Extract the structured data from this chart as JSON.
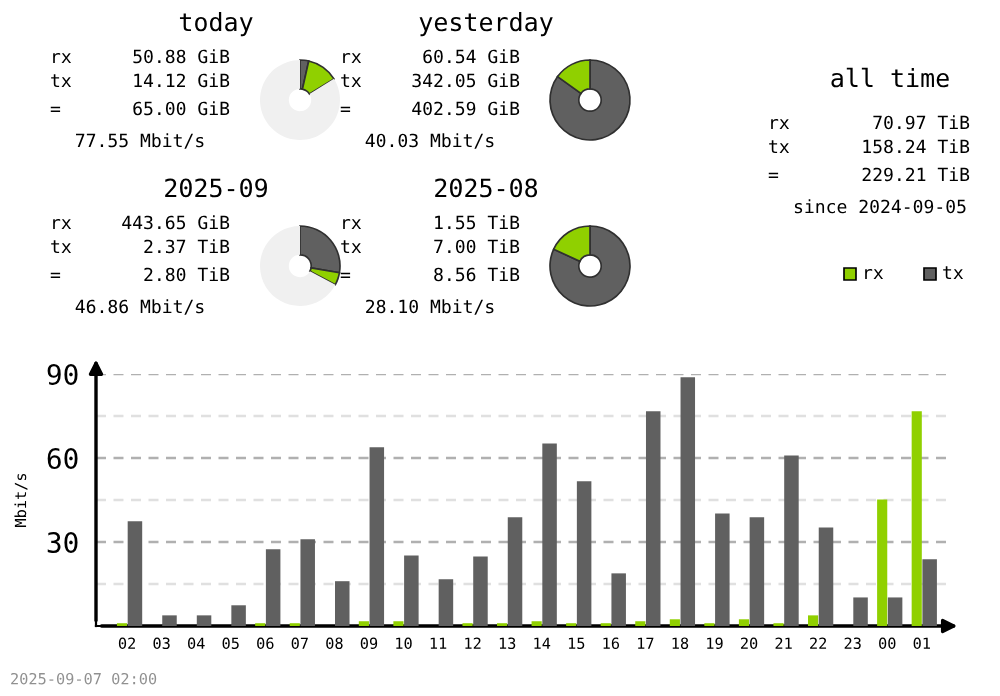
{
  "chart_data": [
    {
      "type": "donut",
      "title": "today",
      "categories": [
        null,
        null,
        null
      ],
      "values": [
        3.5,
        12.64,
        83.86
      ],
      "colors": [
        "#606060",
        "#90d000",
        "#f0f0f0"
      ],
      "annotations": [
        "rx",
        "50.88 GiB",
        "tx",
        "14.12 GiB",
        "=",
        "65.00 GiB",
        "77.55 Mbit/s"
      ]
    },
    {
      "type": "donut",
      "title": "yesterday",
      "categories": [
        null,
        null
      ],
      "values": [
        84.96,
        15.04
      ],
      "colors": [
        "#606060",
        "#90d000"
      ],
      "annotations": [
        "rx",
        "60.54 GiB",
        "tx",
        "342.05 GiB",
        "=",
        "402.59 GiB",
        "40.03 Mbit/s"
      ]
    },
    {
      "type": "donut",
      "title": "2025-09",
      "categories": [
        null,
        null,
        null
      ],
      "values": [
        27.69,
        5.06,
        67.25
      ],
      "colors": [
        "#606060",
        "#90d000",
        "#f0f0f0"
      ],
      "annotations": [
        "rx",
        "443.65 GiB",
        "tx",
        "2.37 TiB",
        "=",
        "2.80 TiB",
        "46.86 Mbit/s"
      ]
    },
    {
      "type": "donut",
      "title": "2025-08",
      "categories": [
        null,
        null
      ],
      "values": [
        81.9,
        18.1
      ],
      "colors": [
        "#606060",
        "#90d000"
      ],
      "annotations": [
        "rx",
        "1.55 TiB",
        "tx",
        "7.00 TiB",
        "=",
        "8.56 TiB",
        "28.10 Mbit/s"
      ]
    },
    {
      "type": "other",
      "title": "all time",
      "annotations": [
        "rx",
        "70.97 TiB",
        "tx",
        "158.24 TiB",
        "=",
        "229.21 TiB",
        "since 2024-09-05"
      ]
    },
    {
      "type": "bar",
      "ylabel": "Mbit/s",
      "categories": [
        "02",
        "03",
        "04",
        "05",
        "06",
        "07",
        "08",
        "09",
        "10",
        "11",
        "12",
        "13",
        "14",
        "15",
        "16",
        "17",
        "18",
        "19",
        "20",
        "21",
        "22",
        "23",
        "00",
        "01"
      ],
      "series": [
        {
          "name": "rx",
          "color": "#90d000",
          "values": [
            1,
            0,
            0,
            0,
            1,
            1,
            0,
            1.7,
            1.7,
            0,
            1,
            1,
            1.7,
            1,
            1,
            1.7,
            2.4,
            1,
            2.4,
            1,
            3.8,
            0,
            45.2,
            76.7
          ]
        },
        {
          "name": "tx",
          "color": "#606060",
          "values": [
            37.4,
            3.8,
            3.8,
            7.4,
            27.4,
            31,
            16,
            63.8,
            25.2,
            16.7,
            24.8,
            38.8,
            65.2,
            51.7,
            18.8,
            76.7,
            88.8,
            40.2,
            38.8,
            60.9,
            35.2,
            10.2,
            10.2,
            23.8
          ]
        }
      ],
      "ylim": [
        0,
        90
      ],
      "yticks": [
        {
          "value": 15,
          "label": null
        },
        30,
        {
          "value": 45,
          "label": null
        },
        60,
        {
          "value": 75,
          "label": null
        },
        90
      ],
      "grid": "y",
      "legend": "top right",
      "annotations": [
        "2025-09-07 02:00"
      ]
    }
  ]
}
